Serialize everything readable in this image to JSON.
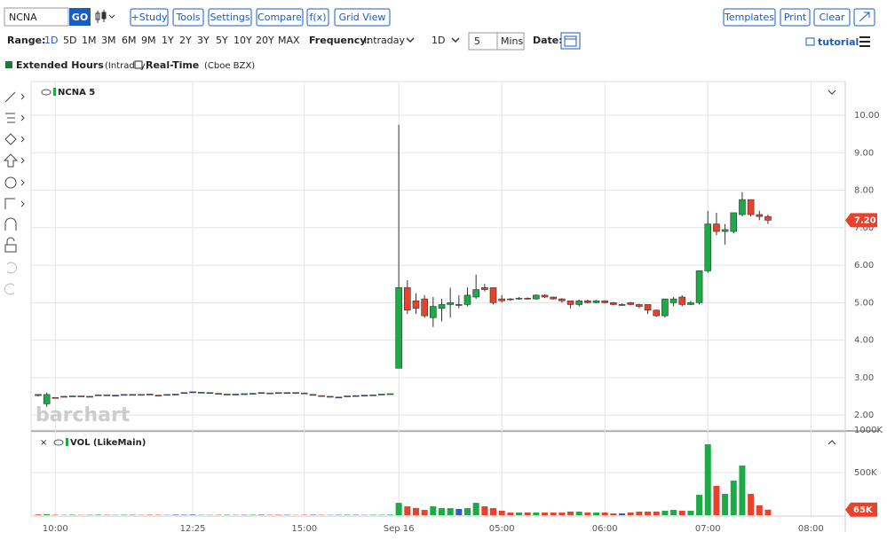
{
  "ui": {
    "symbol": "NCNA",
    "go": "GO",
    "buttons": [
      "+Study",
      "Tools",
      "Settings",
      "Compare",
      "f(x)",
      "Grid View"
    ],
    "right_buttons": [
      "Templates",
      "Print",
      "Clear"
    ],
    "range_label": "Range:",
    "ranges": [
      "1D",
      "5D",
      "1M",
      "3M",
      "6M",
      "9M",
      "1Y",
      "2Y",
      "3Y",
      "5Y",
      "10Y",
      "20Y",
      "MAX"
    ],
    "frequency_label": "Frequency:",
    "frequency": "Intraday",
    "period": "1D",
    "interval": "5",
    "interval_unit": "Mins",
    "date_label": "Date:",
    "tutorial": "tutorial",
    "extended_hours": "Extended Hours",
    "extended_hours_note": "(Intraday)",
    "real_time": "Real-Time",
    "real_time_note": "(Cboe BZX)",
    "panel_label": "NCNA 5",
    "watermark": "barchart",
    "volume_label": "VOL (LikeMain)"
  },
  "chart_data": {
    "type": "candlestick",
    "categories": [
      null,
      null,
      "10:00",
      null,
      null,
      null,
      null,
      null,
      null,
      null,
      null,
      null,
      null,
      null,
      null,
      null,
      null,
      null,
      "12:25",
      null,
      null,
      null,
      null,
      null,
      null,
      null,
      null,
      null,
      null,
      null,
      null,
      "15:00",
      null,
      null,
      null,
      null,
      null,
      null,
      null,
      null,
      null,
      null,
      "Sep 16",
      null,
      null,
      null,
      null,
      null,
      null,
      null,
      null,
      null,
      null,
      null,
      "05:00",
      null,
      null,
      null,
      null,
      null,
      null,
      null,
      null,
      null,
      null,
      null,
      "06:00",
      null,
      null,
      null,
      null,
      null,
      null,
      null,
      null,
      null,
      null,
      null,
      "07:00",
      null,
      null,
      null,
      null,
      null,
      null,
      null,
      null,
      null,
      null,
      null,
      "08:00",
      null,
      null
    ],
    "open": [
      2.55,
      2.3,
      2.47,
      2.5,
      2.5,
      2.51,
      2.5,
      2.53,
      2.54,
      2.53,
      2.54,
      2.55,
      2.55,
      2.56,
      2.53,
      2.55,
      2.56,
      2.6,
      2.62,
      2.6,
      2.6,
      2.58,
      2.55,
      2.56,
      2.57,
      2.57,
      2.6,
      2.59,
      2.6,
      2.6,
      2.6,
      2.59,
      2.55,
      2.52,
      2.5,
      2.48,
      2.5,
      2.52,
      2.53,
      2.52,
      2.55,
      2.56,
      3.25,
      5.4,
      5.05,
      5.1,
      4.6,
      4.85,
      4.95,
      4.95,
      4.95,
      5.15,
      5.4,
      5.4,
      5.1,
      5.1,
      5.1,
      5.12,
      5.1,
      5.2,
      5.15,
      5.1,
      5.05,
      4.95,
      5.05,
      5.0,
      5.05,
      5.0,
      4.95,
      5.0,
      4.95,
      4.95,
      4.8,
      4.65,
      5.0,
      5.15,
      4.95,
      5.0,
      5.85,
      7.1,
      6.9,
      6.9,
      7.35,
      7.75,
      7.35,
      7.3,
      null,
      null,
      null,
      null,
      null,
      null,
      null
    ],
    "high": [
      2.56,
      2.6,
      2.47,
      2.5,
      2.51,
      2.51,
      2.5,
      2.54,
      2.54,
      2.53,
      2.55,
      2.55,
      2.55,
      2.56,
      2.53,
      2.55,
      2.56,
      2.6,
      2.62,
      2.61,
      2.6,
      2.58,
      2.56,
      2.56,
      2.57,
      2.58,
      2.6,
      2.59,
      2.6,
      2.6,
      2.6,
      2.59,
      2.55,
      2.52,
      2.5,
      2.48,
      2.51,
      2.52,
      2.53,
      2.54,
      2.56,
      2.57,
      9.75,
      5.6,
      5.25,
      5.2,
      5.15,
      5.1,
      5.4,
      5.2,
      5.4,
      5.75,
      5.5,
      5.4,
      5.2,
      5.12,
      5.15,
      5.14,
      5.22,
      5.22,
      5.16,
      5.12,
      5.05,
      5.08,
      5.08,
      5.07,
      5.06,
      5.02,
      4.98,
      5.02,
      4.97,
      4.95,
      4.82,
      5.1,
      5.15,
      5.2,
      5.05,
      5.85,
      7.45,
      7.4,
      7.1,
      7.4,
      7.95,
      7.75,
      7.45,
      7.35,
      null,
      null,
      null,
      null,
      null,
      null,
      null
    ],
    "low": [
      2.5,
      2.22,
      2.46,
      2.5,
      2.5,
      2.5,
      2.5,
      2.53,
      2.53,
      2.53,
      2.54,
      2.55,
      2.54,
      2.55,
      2.52,
      2.55,
      2.56,
      2.6,
      2.62,
      2.6,
      2.6,
      2.57,
      2.55,
      2.56,
      2.57,
      2.57,
      2.6,
      2.58,
      2.59,
      2.6,
      2.59,
      2.58,
      2.55,
      2.51,
      2.5,
      2.48,
      2.5,
      2.52,
      2.53,
      2.52,
      2.55,
      2.56,
      3.25,
      4.7,
      4.7,
      4.6,
      4.35,
      4.5,
      4.6,
      4.85,
      4.9,
      5.1,
      5.3,
      4.95,
      5.0,
      5.05,
      5.08,
      5.08,
      5.08,
      5.12,
      5.08,
      5.0,
      4.85,
      4.9,
      4.98,
      4.98,
      4.98,
      4.93,
      4.92,
      4.93,
      4.85,
      4.7,
      4.62,
      4.6,
      4.9,
      4.9,
      4.93,
      4.95,
      5.8,
      6.8,
      6.55,
      6.85,
      7.3,
      7.3,
      7.2,
      7.1,
      null,
      null,
      null,
      null,
      null,
      null,
      null
    ],
    "close": [
      2.52,
      2.55,
      2.46,
      2.5,
      2.51,
      2.5,
      2.5,
      2.54,
      2.53,
      2.53,
      2.55,
      2.55,
      2.54,
      2.55,
      2.52,
      2.55,
      2.56,
      2.6,
      2.62,
      2.61,
      2.6,
      2.57,
      2.56,
      2.56,
      2.57,
      2.58,
      2.6,
      2.58,
      2.59,
      2.6,
      2.59,
      2.58,
      2.55,
      2.51,
      2.5,
      2.48,
      2.51,
      2.52,
      2.53,
      2.54,
      2.56,
      2.57,
      5.4,
      4.8,
      4.85,
      4.65,
      4.9,
      4.95,
      5.0,
      4.95,
      5.2,
      5.35,
      5.35,
      5.0,
      5.05,
      5.08,
      5.12,
      5.1,
      5.2,
      5.15,
      5.1,
      5.05,
      4.95,
      5.05,
      5.0,
      5.05,
      5.0,
      4.95,
      4.95,
      4.95,
      4.9,
      4.8,
      4.65,
      5.1,
      5.1,
      4.95,
      5.0,
      5.85,
      7.1,
      6.9,
      6.95,
      7.4,
      7.75,
      7.35,
      7.3,
      7.2,
      null,
      null,
      null,
      null,
      null,
      null,
      null
    ],
    "volume": [
      8000,
      12000,
      4000,
      3000,
      5000,
      3000,
      4000,
      6000,
      4000,
      3000,
      5000,
      4000,
      3000,
      5000,
      4000,
      3000,
      6000,
      5000,
      7000,
      4000,
      3000,
      4000,
      5000,
      3000,
      4000,
      5000,
      6000,
      4000,
      5000,
      4000,
      3000,
      4000,
      5000,
      4000,
      3000,
      4000,
      5000,
      4000,
      3000,
      5000,
      4000,
      6000,
      145000,
      105000,
      85000,
      62000,
      105000,
      83000,
      83000,
      73000,
      83000,
      145000,
      105000,
      83000,
      52000,
      31000,
      31000,
      31000,
      31000,
      31000,
      31000,
      31000,
      42000,
      42000,
      31000,
      31000,
      31000,
      21000,
      21000,
      31000,
      42000,
      42000,
      42000,
      52000,
      62000,
      52000,
      52000,
      240000,
      833000,
      344000,
      250000,
      406000,
      583000,
      250000,
      115000,
      65000,
      null,
      null,
      null,
      null,
      null,
      null,
      null
    ],
    "up_color": "#1dab47",
    "down_color": "#e8412c",
    "unchanged_color": "#3a57c4",
    "ylim": [
      1.6,
      10.9
    ],
    "yticks": [
      {
        "value": 2,
        "label": "2.00"
      },
      {
        "value": 3,
        "label": "3.00"
      },
      {
        "value": 4,
        "label": "4.00"
      },
      {
        "value": 5,
        "label": "5.00"
      },
      {
        "value": 6,
        "label": "6.00"
      },
      {
        "value": 7,
        "label": "7.00"
      },
      {
        "value": 8,
        "label": "8.00"
      },
      {
        "value": 9,
        "label": "9.00"
      },
      {
        "value": 10,
        "label": "10.00"
      }
    ],
    "volume_ylim": [
      0,
      1000000
    ],
    "volume_yticks": [
      {
        "value": 500000,
        "label": "500K"
      },
      {
        "value": 1000000,
        "label": "1000K"
      }
    ],
    "last_price_label": "7.20",
    "last_volume_label": "65K",
    "grid": true
  }
}
